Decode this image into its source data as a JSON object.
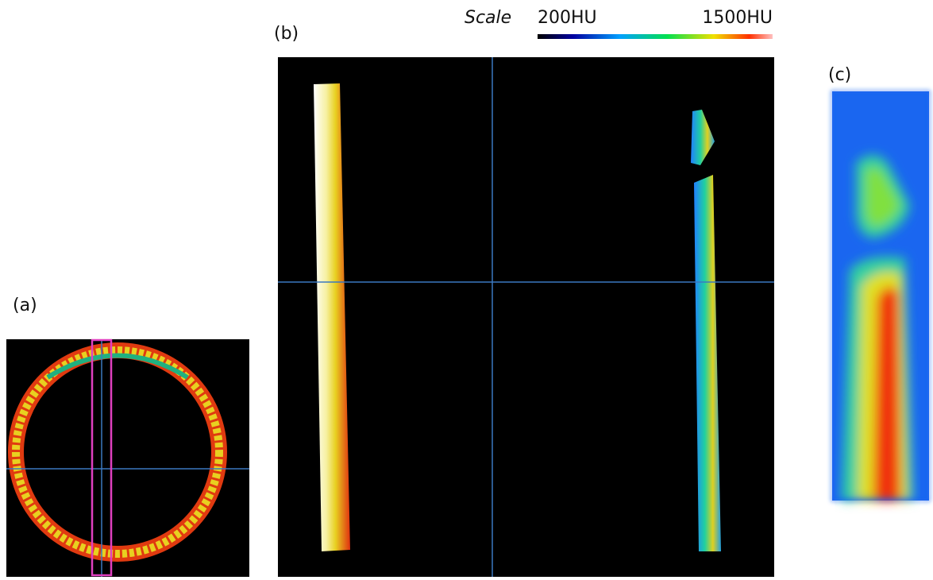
{
  "panels": {
    "a": {
      "label": "(a)"
    },
    "b": {
      "label": "(b)"
    },
    "c": {
      "label": "(c)"
    }
  },
  "scale": {
    "title": "Scale",
    "min_label": "200HU",
    "max_label": "1500HU"
  }
}
